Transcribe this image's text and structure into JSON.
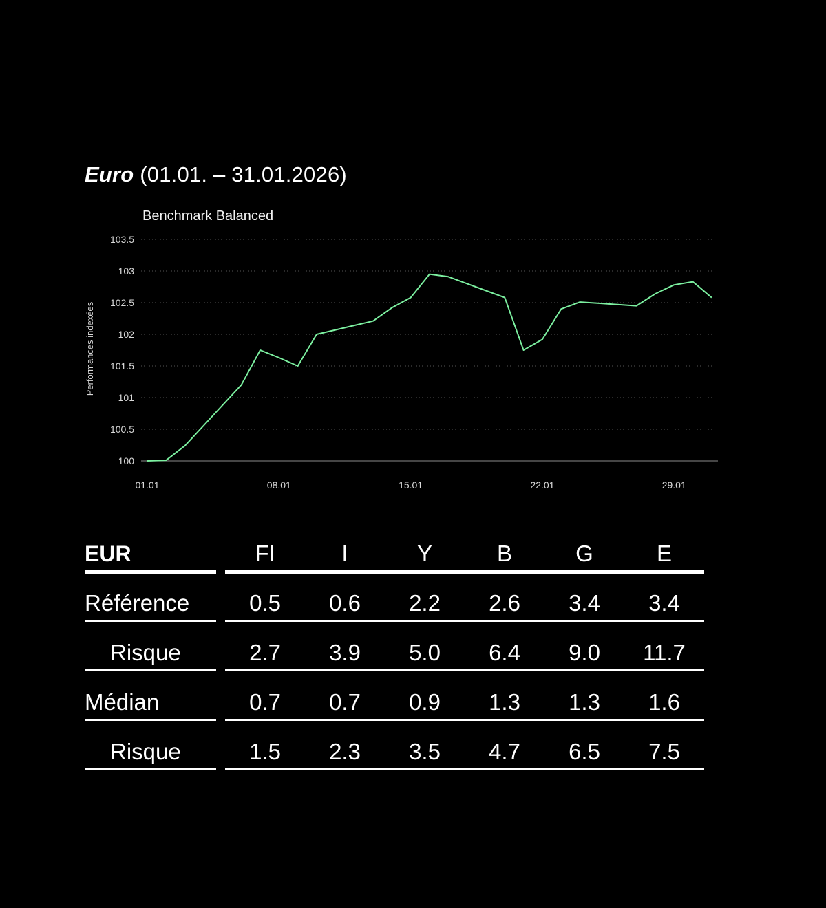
{
  "title": {
    "strong": "Euro",
    "period": "(01.01. – 31.01.2026)"
  },
  "chart_data": {
    "type": "line",
    "title": "Benchmark Balanced",
    "ylabel": "Performances indexées",
    "xlabel": "",
    "ylim": [
      100,
      103.5
    ],
    "yticks": [
      "100",
      "100.5",
      "101",
      "101.5",
      "102",
      "102.5",
      "103",
      "103.5"
    ],
    "xticks": [
      "01.01",
      "08.01",
      "15.01",
      "22.01",
      "29.01"
    ],
    "grid": "horizontal-dotted",
    "color": "#7cf0a0",
    "series": [
      {
        "name": "",
        "x": [
          "01.01",
          "02.01",
          "03.01",
          "04.01",
          "05.01",
          "06.01",
          "07.01",
          "08.01",
          "09.01",
          "10.01",
          "11.01",
          "12.01",
          "13.01",
          "14.01",
          "15.01",
          "16.01",
          "17.01",
          "18.01",
          "19.01",
          "20.01",
          "21.01",
          "22.01",
          "23.01",
          "24.01",
          "25.01",
          "26.01",
          "27.01",
          "28.01",
          "29.01",
          "30.01",
          "31.01"
        ],
        "values": [
          100.0,
          100.01,
          100.24,
          100.56,
          100.88,
          101.2,
          101.75,
          101.63,
          101.5,
          102.0,
          102.07,
          102.14,
          102.21,
          102.42,
          102.58,
          102.95,
          102.91,
          102.8,
          102.69,
          102.58,
          101.75,
          101.92,
          102.4,
          102.51,
          102.49,
          102.47,
          102.45,
          102.64,
          102.78,
          102.83,
          102.58
        ]
      }
    ]
  },
  "table": {
    "header": {
      "label": "EUR",
      "cols": [
        "FI",
        "I",
        "Y",
        "B",
        "G",
        "E"
      ]
    },
    "rows": [
      {
        "label": "Référence",
        "indent": false,
        "values": [
          "0.5",
          "0.6",
          "2.2",
          "2.6",
          "3.4",
          "3.4"
        ]
      },
      {
        "label": "Risque",
        "indent": true,
        "values": [
          "2.7",
          "3.9",
          "5.0",
          "6.4",
          "9.0",
          "11.7"
        ]
      },
      {
        "label": "Médian",
        "indent": false,
        "values": [
          "0.7",
          "0.7",
          "0.9",
          "1.3",
          "1.3",
          "1.6"
        ]
      },
      {
        "label": "Risque",
        "indent": true,
        "values": [
          "1.5",
          "2.3",
          "3.5",
          "4.7",
          "6.5",
          "7.5"
        ]
      }
    ]
  }
}
